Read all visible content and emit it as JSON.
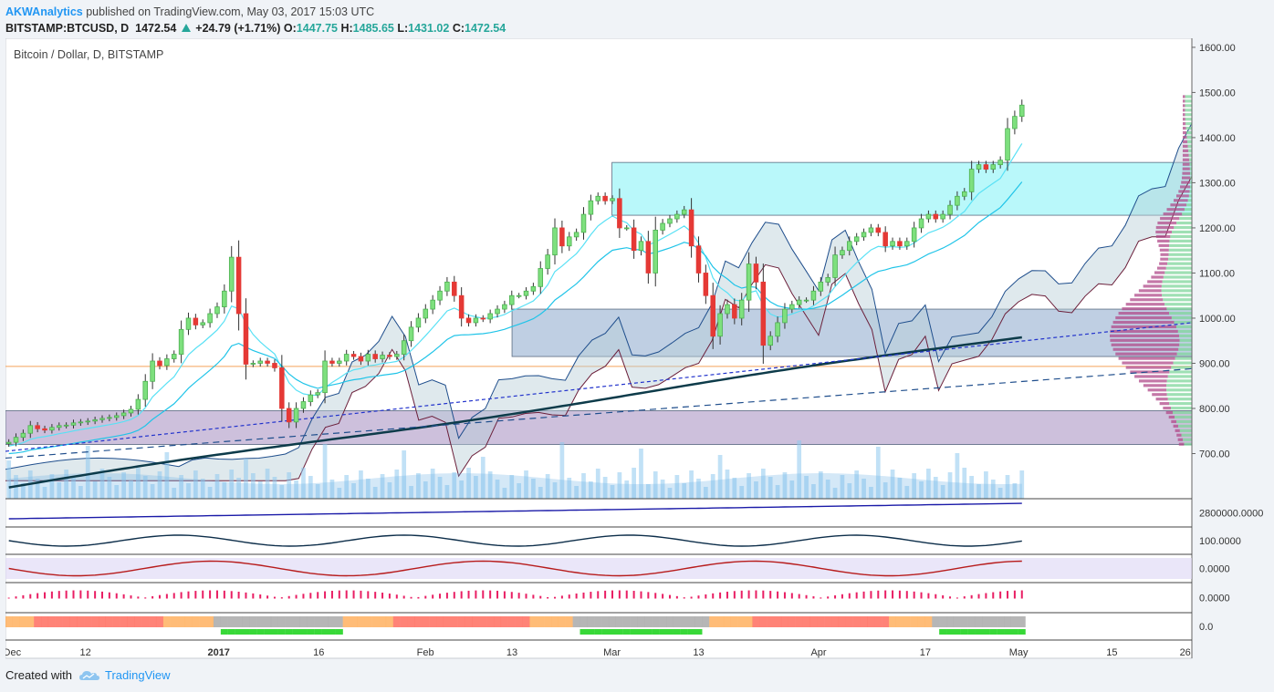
{
  "header": {
    "author": "AKWAnalytics",
    "published": "published on TradingView.com, May 03, 2017 15:03 UTC"
  },
  "ohlc": {
    "symbol": "BITSTAMP:BTCUSD, D",
    "last": "1472.54",
    "change": "+24.79 (+1.71%)",
    "o_label": "O:",
    "o": "1447.75",
    "h_label": "H:",
    "h": "1485.65",
    "l_label": "L:",
    "l": "1431.02",
    "c_label": "C:",
    "c": "1472.54"
  },
  "footer": {
    "created": "Created with",
    "brand": "TradingView"
  },
  "chart_data": {
    "type": "candlestick",
    "title": "Bitcoin / Dollar, D, BITSTAMP",
    "ylim": [
      600,
      1620
    ],
    "y_ticks": [
      "1600.00",
      "1500.00",
      "1400.00",
      "1300.00",
      "1200.00",
      "1100.00",
      "1000.00",
      "900.00",
      "800.00",
      "700.00"
    ],
    "x_ticks": [
      "Dec",
      "12",
      "2017",
      "16",
      "Feb",
      "13",
      "Mar",
      "13",
      "Apr",
      "17",
      "May",
      "15",
      "26"
    ],
    "x_tick_days": [
      1,
      12,
      32,
      47,
      63,
      76,
      91,
      104,
      122,
      138,
      152,
      166,
      177
    ],
    "x_range_days": [
      0,
      178
    ],
    "close": [
      725,
      736,
      745,
      762,
      755,
      752,
      758,
      762,
      763,
      768,
      770,
      772,
      775,
      778,
      780,
      784,
      790,
      798,
      820,
      860,
      905,
      895,
      910,
      920,
      975,
      1000,
      985,
      990,
      1010,
      1025,
      1060,
      1135,
      1010,
      898,
      900,
      905,
      900,
      890,
      800,
      770,
      800,
      815,
      830,
      835,
      905,
      900,
      905,
      920,
      915,
      905,
      920,
      910,
      918,
      915,
      920,
      950,
      980,
      1000,
      1020,
      1040,
      1060,
      1080,
      1050,
      1000,
      990,
      1000,
      998,
      1010,
      1020,
      1030,
      1050,
      1050,
      1060,
      1070,
      1110,
      1140,
      1200,
      1160,
      1180,
      1190,
      1230,
      1260,
      1270,
      1260,
      1265,
      1200,
      1200,
      1150,
      1170,
      1100,
      1195,
      1210,
      1220,
      1230,
      1240,
      1160,
      1100,
      1050,
      960,
      1010,
      1030,
      1000,
      1040,
      1120,
      1080,
      940,
      960,
      990,
      1020,
      1030,
      1040,
      1040,
      1060,
      1080,
      1090,
      1140,
      1150,
      1170,
      1180,
      1190,
      1200,
      1190,
      1160,
      1170,
      1160,
      1170,
      1200,
      1220,
      1230,
      1220,
      1230,
      1250,
      1270,
      1280,
      1330,
      1340,
      1330,
      1340,
      1350,
      1420,
      1447,
      1472
    ],
    "series": [
      {
        "name": "",
        "type": "candles"
      },
      {
        "name": "",
        "type": "ema-fast"
      },
      {
        "name": "",
        "type": "ema-slow"
      },
      {
        "name": "",
        "type": "sma-200"
      },
      {
        "name": "",
        "type": "ichimoku-cloud"
      },
      {
        "name": "",
        "type": "volume"
      },
      {
        "name": "",
        "type": "volume-profile"
      }
    ],
    "zones": [
      {
        "from": 1228,
        "to": 1345,
        "day_from": 91,
        "day_to": 178,
        "color": "#7ff3f5"
      },
      {
        "from": 915,
        "to": 1020,
        "day_from": 76,
        "day_to": 178,
        "color": "#8aa8cc"
      },
      {
        "from": 720,
        "to": 795,
        "day_from": 0,
        "day_to": 178,
        "color": "#a48cc0"
      }
    ],
    "hline_price": 893,
    "panels": [
      {
        "label": "2800000.0000",
        "line_color": "#1a1aa8"
      },
      {
        "label": "100.0000",
        "line_color": "#0d2e4a"
      },
      {
        "label": "0.0000",
        "line_color": "#b71c1c"
      },
      {
        "label": "0.0000",
        "line_color": "#e91e63"
      },
      {
        "label": "0.0",
        "line_color": "#ff7043"
      }
    ],
    "colors": {
      "up": "#4caf50",
      "down": "#e53935",
      "up_fill": "#7ee07e",
      "down_fill": "#e53935"
    }
  }
}
